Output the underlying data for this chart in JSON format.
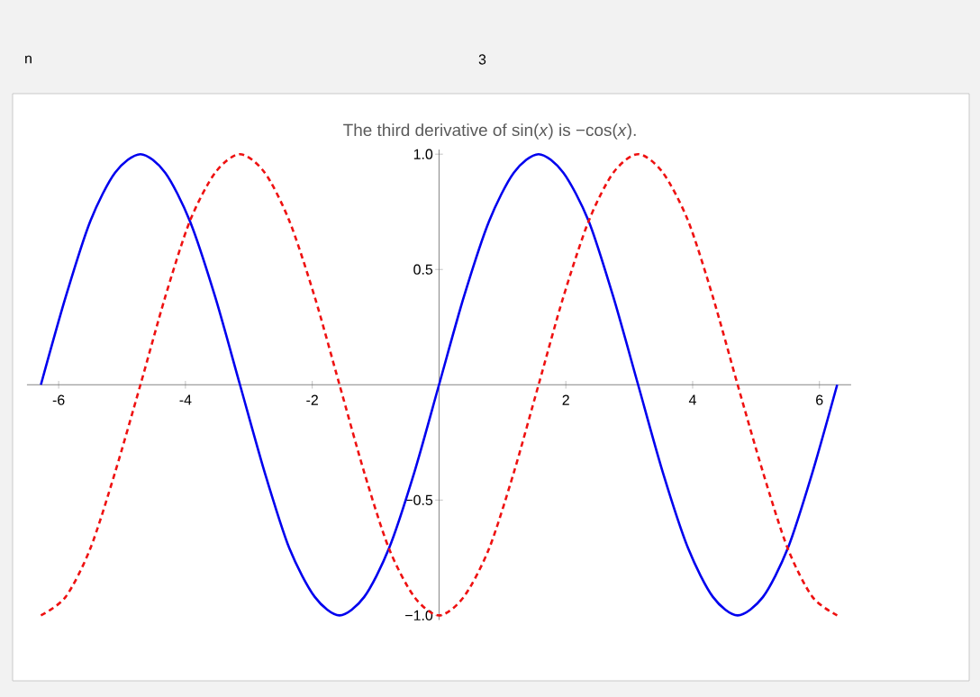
{
  "chart_data": {
    "type": "line",
    "title": "The third derivative of sin(*x*) is −cos(*x*).",
    "annotations": [
      "n",
      "3"
    ],
    "x": [
      -6.28,
      -5.89,
      -5.5,
      -5.11,
      -4.71,
      -4.32,
      -3.93,
      -3.53,
      -3.14,
      -2.75,
      -2.36,
      -1.96,
      -1.57,
      -1.18,
      -0.79,
      -0.39,
      0,
      0.39,
      0.79,
      1.18,
      1.57,
      1.96,
      2.36,
      2.75,
      3.14,
      3.53,
      3.93,
      4.32,
      4.71,
      5.11,
      5.5,
      5.89,
      6.28
    ],
    "series": [
      {
        "color": "#0000ee",
        "line_style": "solid",
        "values": [
          0,
          0.38,
          0.71,
          0.92,
          1,
          0.92,
          0.71,
          0.38,
          0,
          -0.38,
          -0.71,
          -0.92,
          -1,
          -0.92,
          -0.71,
          -0.38,
          0,
          0.38,
          0.71,
          0.92,
          1,
          0.92,
          0.71,
          0.38,
          0,
          -0.38,
          -0.71,
          -0.92,
          -1,
          -0.92,
          -0.71,
          -0.38,
          0
        ]
      },
      {
        "color": "#ee1111",
        "line_style": "dashed",
        "values": [
          -1,
          -0.92,
          -0.71,
          -0.38,
          0,
          0.38,
          0.71,
          0.92,
          1,
          0.92,
          0.71,
          0.38,
          0,
          -0.38,
          -0.71,
          -0.92,
          -1,
          -0.92,
          -0.71,
          -0.38,
          0,
          0.38,
          0.71,
          0.92,
          1,
          0.92,
          0.71,
          0.38,
          0,
          -0.38,
          -0.71,
          -0.92,
          -1
        ]
      }
    ],
    "xlim": [
      -6.5,
      6.5
    ],
    "ylim": [
      -1.02,
      1.02
    ],
    "xticks": [
      -6,
      -4,
      -2,
      2,
      4,
      6
    ],
    "yticks": [
      {
        "value": -1,
        "label": "−1.0"
      },
      {
        "value": -0.5,
        "label": "−0.5"
      },
      {
        "value": 0.5,
        "label": "0.5"
      },
      {
        "value": 1,
        "label": "1.0"
      }
    ],
    "grid": false,
    "marker": "none"
  }
}
